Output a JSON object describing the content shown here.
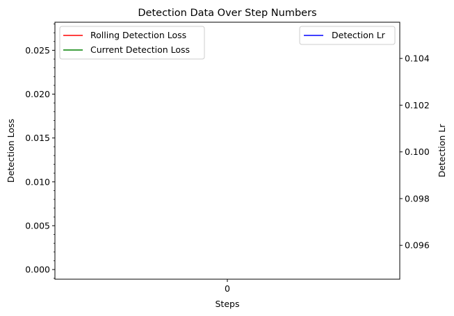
{
  "chart_data": {
    "type": "line",
    "title": "Detection Data Over Step Numbers",
    "xlabel": "Steps",
    "ylabel": "Detection Loss",
    "y2label": "Detection Lr",
    "x_ticks": [
      "0"
    ],
    "xlim": [
      -0.055,
      0.055
    ],
    "ylim": [
      -0.0011,
      0.0282
    ],
    "y_ticks": [
      0.0,
      0.005,
      0.01,
      0.015,
      0.02,
      0.025
    ],
    "y_tick_labels": [
      "0.000",
      "0.005",
      "0.010",
      "0.015",
      "0.020",
      "0.025"
    ],
    "y2lim": [
      0.09455,
      0.10555
    ],
    "y2_ticks": [
      0.096,
      0.098,
      0.1,
      0.102,
      0.104
    ],
    "y2_tick_labels": [
      "0.096",
      "0.098",
      "0.100",
      "0.102",
      "0.104"
    ],
    "grid": false,
    "minor_ticks_left": true,
    "legend_left": {
      "placement": "upper-left",
      "entries": [
        {
          "name": "Rolling Detection Loss",
          "color": "#ff0000"
        },
        {
          "name": "Current Detection Loss",
          "color": "#008000"
        }
      ]
    },
    "legend_right": {
      "placement": "upper-right",
      "entries": [
        {
          "name": "Detection Lr",
          "color": "#0000ff"
        }
      ]
    },
    "series": [
      {
        "name": "Rolling Detection Loss",
        "axis": "left",
        "color": "#ff0000",
        "x": [],
        "values": []
      },
      {
        "name": "Current Detection Loss",
        "axis": "left",
        "color": "#008000",
        "x": [],
        "values": []
      },
      {
        "name": "Detection Lr",
        "axis": "right",
        "color": "#0000ff",
        "x": [],
        "values": []
      }
    ]
  }
}
